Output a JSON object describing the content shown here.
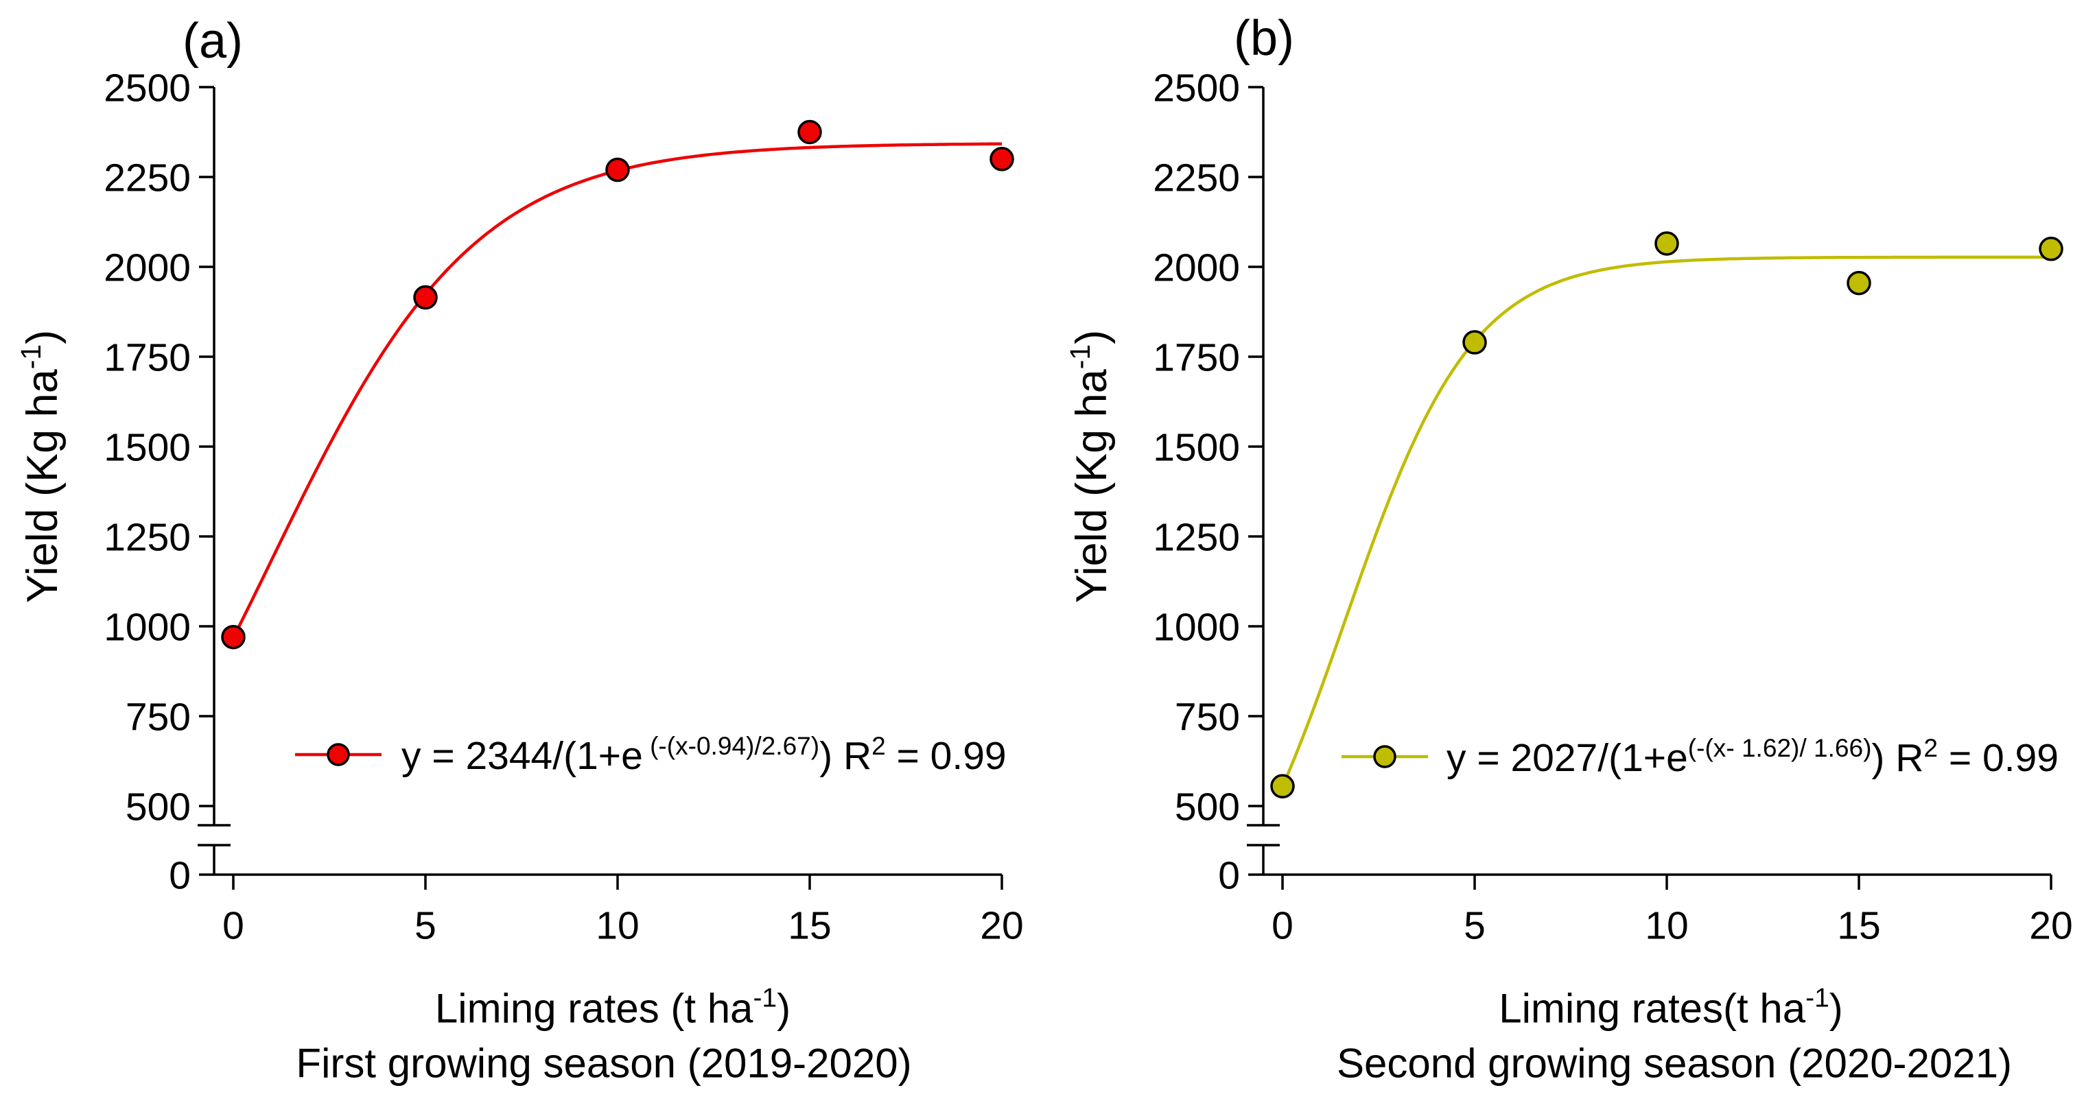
{
  "chart_data": [
    {
      "type": "scatter",
      "panel_label": "(a)",
      "series_color": "#ee0202",
      "marker_edge_color": "#000000",
      "x": [
        0,
        5,
        10,
        15,
        20
      ],
      "y": [
        970,
        1915,
        2270,
        2375,
        2300
      ],
      "fit_curve": {
        "type": "logistic",
        "A": 2344,
        "x0": 0.94,
        "b": 2.67,
        "x_range": [
          0,
          20
        ]
      },
      "equation": {
        "prefix": "y = 2344/(1+e",
        "exponent": " (-(x-0.94)/2.67)",
        "mid": ") R",
        "r_sup": "2",
        "suffix": " = 0.99"
      },
      "xlabel": {
        "text": "Liming rates (t ha",
        "sup": "-1",
        "close": ")"
      },
      "season": "First growing season (2019-2020)",
      "ylabel": {
        "text": "Yield (Kg ha",
        "sup": "-1",
        "close": ")"
      },
      "x_ticks": [
        0,
        5,
        10,
        15,
        20
      ],
      "y_ticks_main": [
        2500,
        2250,
        2000,
        1750,
        1500,
        1250,
        1000,
        750,
        500
      ],
      "y_tick_zero": 0,
      "ylim_main": [
        500,
        2500
      ],
      "axis_break": true,
      "grid": false,
      "legend_position": "inside-bottom"
    },
    {
      "type": "scatter",
      "panel_label": "(b)",
      "series_color": "#c0bc00",
      "marker_edge_color": "#000000",
      "x": [
        0,
        5,
        10,
        15,
        20
      ],
      "y": [
        555,
        1790,
        2065,
        1955,
        2050
      ],
      "fit_curve": {
        "type": "logistic",
        "A": 2027,
        "x0": 1.62,
        "b": 1.66,
        "x_range": [
          0,
          20
        ]
      },
      "equation": {
        "prefix": "y = 2027/(1+e",
        "exponent": "(-(x- 1.62)/ 1.66)",
        "mid": ") R",
        "r_sup": "2",
        "suffix": " = 0.99"
      },
      "xlabel": {
        "text": "Liming rates(t ha",
        "sup": "-1",
        "close": ")"
      },
      "season": "Second growing season (2020-2021)",
      "ylabel": {
        "text": "Yield (Kg ha",
        "sup": "-1",
        "close": ")"
      },
      "x_ticks": [
        0,
        5,
        10,
        15,
        20
      ],
      "y_ticks_main": [
        2500,
        2250,
        2000,
        1750,
        1500,
        1250,
        1000,
        750,
        500
      ],
      "y_tick_zero": 0,
      "ylim_main": [
        500,
        2500
      ],
      "axis_break": true,
      "grid": false,
      "legend_position": "inside-bottom"
    }
  ]
}
